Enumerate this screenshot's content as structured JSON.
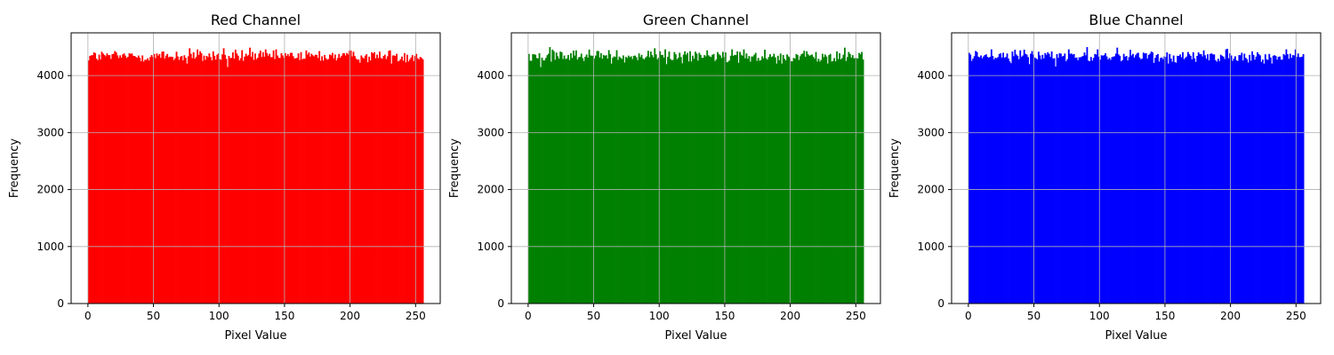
{
  "chart_data": [
    {
      "type": "bar",
      "title": "Red Channel",
      "xlabel": "Pixel Value",
      "ylabel": "Frequency",
      "color": "#ff0000",
      "xlim": [
        -12.8,
        268.8
      ],
      "ylim": [
        0,
        4750
      ],
      "xticks": [
        0,
        50,
        100,
        150,
        200,
        250
      ],
      "yticks": [
        0,
        1000,
        2000,
        3000,
        4000
      ],
      "grid": true,
      "bins": 256,
      "approx_level": 4340,
      "approx_range": [
        4150,
        4500
      ],
      "peaks": [
        {
          "x": 123,
          "y": 4490
        },
        {
          "x": 77,
          "y": 4480
        },
        {
          "x": 103,
          "y": 4480
        }
      ],
      "troughs": [
        {
          "x": 106,
          "y": 4150
        },
        {
          "x": 75,
          "y": 4210
        }
      ]
    },
    {
      "type": "bar",
      "title": "Green Channel",
      "xlabel": "Pixel Value",
      "ylabel": "Frequency",
      "color": "#008000",
      "xlim": [
        -12.8,
        268.8
      ],
      "ylim": [
        0,
        4750
      ],
      "xticks": [
        0,
        50,
        100,
        150,
        200,
        250
      ],
      "yticks": [
        0,
        1000,
        2000,
        3000,
        4000
      ],
      "grid": true,
      "bins": 256,
      "approx_level": 4340,
      "approx_range": [
        4150,
        4500
      ],
      "peaks": [
        {
          "x": 16,
          "y": 4500
        },
        {
          "x": 241,
          "y": 4490
        },
        {
          "x": 96,
          "y": 4480
        }
      ],
      "troughs": [
        {
          "x": 9,
          "y": 4150
        },
        {
          "x": 105,
          "y": 4200
        }
      ]
    },
    {
      "type": "bar",
      "title": "Blue Channel",
      "xlabel": "Pixel Value",
      "ylabel": "Frequency",
      "color": "#0000ff",
      "xlim": [
        -12.8,
        268.8
      ],
      "ylim": [
        0,
        4750
      ],
      "xticks": [
        0,
        50,
        100,
        150,
        200,
        250
      ],
      "yticks": [
        0,
        1000,
        2000,
        3000,
        4000
      ],
      "grid": true,
      "bins": 256,
      "approx_level": 4340,
      "approx_range": [
        4150,
        4500
      ],
      "peaks": [
        {
          "x": 90,
          "y": 4500
        },
        {
          "x": 113,
          "y": 4490
        },
        {
          "x": 197,
          "y": 4470
        }
      ],
      "troughs": [
        {
          "x": 66,
          "y": 4160
        },
        {
          "x": 46,
          "y": 4200
        }
      ]
    }
  ]
}
